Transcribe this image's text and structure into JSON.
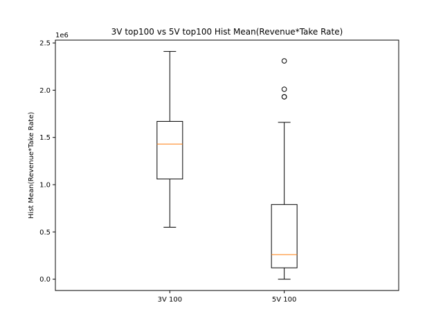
{
  "chart_data": {
    "type": "box",
    "title": "3V top100 vs 5V top100 Hist Mean(Revenue*Take Rate)",
    "xlabel": "",
    "ylabel": "Hist Mean(Revenue*Take Rate)",
    "y_offset_label": "1e6",
    "ylim": [
      -0.12,
      2.53
    ],
    "yticks": [
      0.0,
      0.5,
      1.0,
      1.5,
      2.0,
      2.5
    ],
    "ytick_labels": [
      "0.0",
      "0.5",
      "1.0",
      "1.5",
      "2.0",
      "2.5"
    ],
    "categories": [
      "3V 100",
      "5V 100"
    ],
    "boxes": [
      {
        "whisker_low": 0.55,
        "q1": 1.06,
        "median": 1.43,
        "q3": 1.67,
        "whisker_high": 2.41,
        "outliers": []
      },
      {
        "whisker_low": 0.0,
        "q1": 0.12,
        "median": 0.26,
        "q3": 0.79,
        "whisker_high": 1.66,
        "outliers": [
          1.93,
          1.93,
          2.01,
          2.31
        ]
      }
    ],
    "grid": false,
    "colors": {
      "box": "#000000",
      "median": "#ff7f0e",
      "outlier": "#000000"
    }
  }
}
